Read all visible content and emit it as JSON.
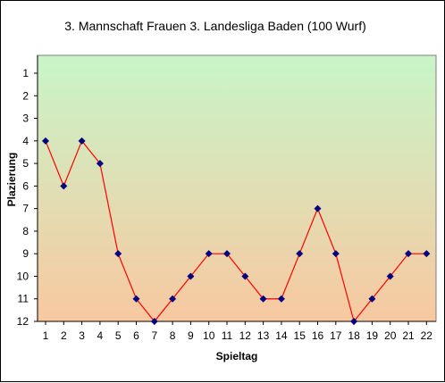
{
  "chart_data": {
    "type": "line",
    "title": "3. Mannschaft Frauen   3. Landesliga Baden (100 Wurf)",
    "xlabel": "Spieltag",
    "ylabel": "Plazierung",
    "x": [
      1,
      2,
      3,
      4,
      5,
      6,
      7,
      8,
      9,
      10,
      11,
      12,
      13,
      14,
      15,
      16,
      17,
      18,
      19,
      20,
      21,
      22
    ],
    "series": [
      {
        "values": [
          4,
          6,
          4,
          5,
          9,
          11,
          12,
          11,
          10,
          9,
          9,
          10,
          11,
          11,
          9,
          7,
          9,
          12,
          11,
          10,
          9,
          9
        ]
      }
    ],
    "xlim": [
      1,
      22
    ],
    "ylim": [
      1,
      12
    ],
    "y_inverted": true,
    "y_ticks": [
      1,
      2,
      3,
      4,
      5,
      6,
      7,
      8,
      9,
      10,
      11,
      12
    ],
    "grid": false,
    "legend": "none",
    "colors": {
      "line": "#ff0000",
      "marker": "#000080",
      "background_top": "#c8f5c8",
      "background_bottom": "#f8c8a0"
    }
  }
}
